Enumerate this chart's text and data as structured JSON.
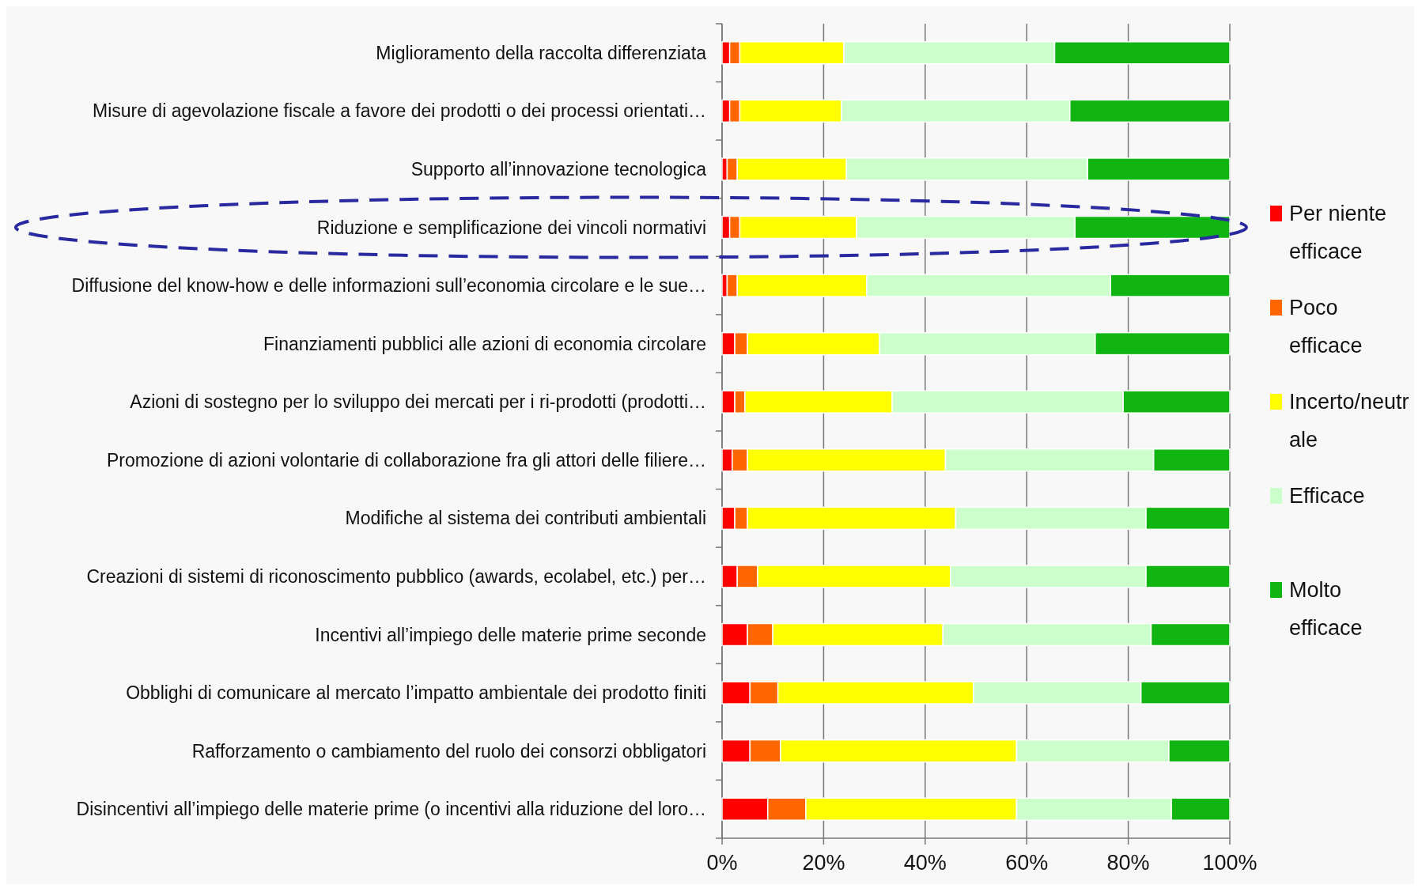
{
  "chart_data": {
    "type": "bar",
    "orientation": "horizontal",
    "stacked": true,
    "categories": [
      "Miglioramento della raccolta differenziata",
      "Misure di agevolazione fiscale a favore dei prodotti o dei processi orientati…",
      "Supporto all’innovazione tecnologica",
      "Riduzione e semplificazione dei vincoli normativi",
      "Diffusione del know-how e delle informazioni sull’economia circolare e le sue…",
      "Finanziamenti pubblici alle azioni di economia circolare",
      "Azioni di sostegno per lo sviluppo dei mercati per i ri-prodotti (prodotti…",
      "Promozione di azioni volontarie di collaborazione fra gli attori delle filiere…",
      "Modifiche al sistema dei contributi ambientali",
      "Creazioni di sistemi di riconoscimento pubblico (awards, ecolabel, etc.) per…",
      "Incentivi all’impiego delle materie prime seconde",
      "Obblighi di comunicare al mercato l’impatto ambientale dei prodotto finiti",
      "Rafforzamento o cambiamento del ruolo dei consorzi obbligatori",
      "Disincentivi all’impiego delle materie prime (o incentivi alla riduzione del loro…"
    ],
    "series": [
      {
        "name": "Per niente efficace",
        "color": "#ff0000",
        "values": [
          1.5,
          1.5,
          1,
          1.5,
          1,
          2.5,
          2.5,
          2,
          2.5,
          3,
          5,
          5.5,
          5.5,
          9
        ]
      },
      {
        "name": "Poco efficace",
        "color": "#ff6600",
        "values": [
          2,
          2,
          2,
          2,
          2,
          2.5,
          2,
          3,
          2.5,
          4,
          5,
          5.5,
          6,
          7.5
        ]
      },
      {
        "name": "Incerto/neutrale",
        "color": "#ffff00",
        "values": [
          20.5,
          20,
          21.5,
          23,
          25.5,
          26,
          29,
          39,
          41,
          38,
          33.5,
          38.5,
          46.5,
          41.5
        ]
      },
      {
        "name": "Efficace",
        "color": "#ccffcc",
        "values": [
          41.5,
          45,
          47.5,
          43,
          48,
          42.5,
          45.5,
          41,
          37.5,
          38.5,
          41,
          33,
          30,
          30.5
        ]
      },
      {
        "name": "Molto efficace",
        "color": "#11b511",
        "values": [
          34.5,
          31.5,
          28,
          30.5,
          23.5,
          26.5,
          21,
          15,
          16.5,
          16.5,
          15.5,
          17.5,
          12,
          11.5
        ]
      }
    ],
    "xlim": [
      0,
      100
    ],
    "xticks": [
      {
        "value": 0,
        "label": "0%"
      },
      {
        "value": 20,
        "label": "20%"
      },
      {
        "value": 40,
        "label": "40%"
      },
      {
        "value": 60,
        "label": "60%"
      },
      {
        "value": 80,
        "label": "80%"
      },
      {
        "value": 100,
        "label": "100%"
      }
    ],
    "grid": "x",
    "legend": "right"
  }
}
